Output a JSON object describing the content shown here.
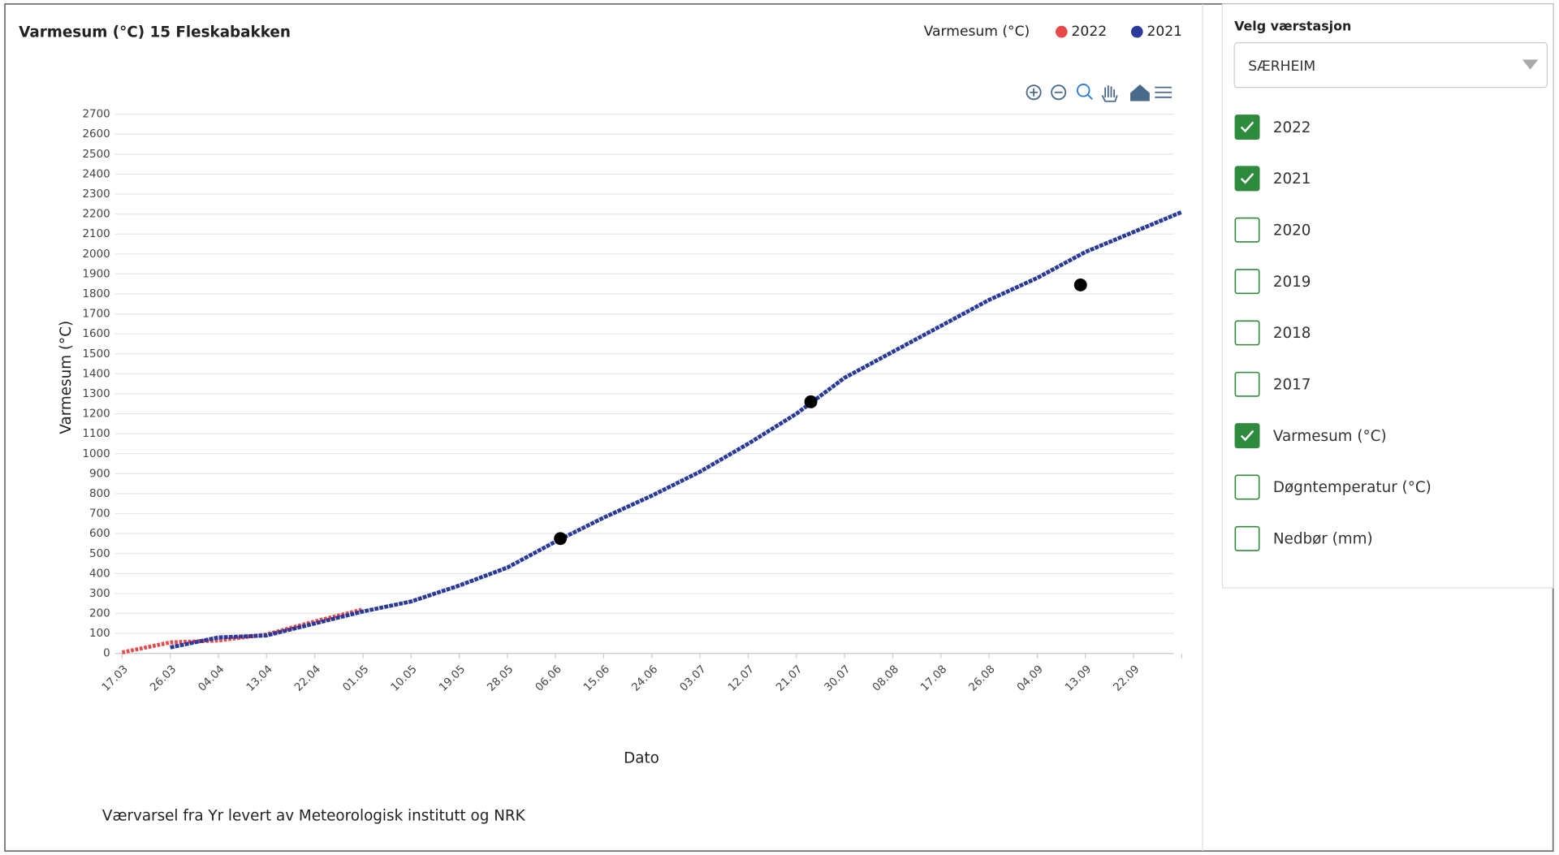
{
  "chart_data": {
    "type": "line",
    "title": "Varmesum (°C) 15 Fleskabakken",
    "legend_title": "Varmesum (°C)",
    "xlabel": "Dato",
    "ylabel": "Varmesum (°C)",
    "categories": [
      "17.03",
      "26.03",
      "04.04",
      "13.04",
      "22.04",
      "01.05",
      "10.05",
      "19.05",
      "28.05",
      "06.06",
      "15.06",
      "24.06",
      "03.07",
      "12.07",
      "21.07",
      "30.07",
      "08.08",
      "17.08",
      "26.08",
      "04.09",
      "13.09",
      "22.09",
      null
    ],
    "series": [
      {
        "name": "2022",
        "color": "#e84a4a",
        "values": [
          5,
          55,
          65,
          95,
          160,
          220,
          null,
          null,
          null,
          null,
          null,
          null,
          null,
          null,
          null,
          null,
          null,
          null,
          null,
          null,
          null,
          null,
          null
        ]
      },
      {
        "name": "2021",
        "color": "#2a3a9a",
        "values": [
          null,
          30,
          80,
          90,
          150,
          210,
          260,
          340,
          430,
          560,
          680,
          790,
          910,
          1050,
          1200,
          1380,
          1510,
          1640,
          1770,
          1880,
          2010,
          2110,
          2210
        ]
      }
    ],
    "markers": {
      "positions": [
        9.1,
        14.3,
        19.9
      ],
      "values": [
        575,
        1260,
        1845
      ],
      "color": "#000000"
    },
    "ylim": [
      0,
      2700
    ],
    "yticks": [
      0,
      100,
      200,
      300,
      400,
      500,
      600,
      700,
      800,
      900,
      1000,
      1100,
      1200,
      1300,
      1400,
      1500,
      1600,
      1700,
      1800,
      1900,
      2000,
      2100,
      2200,
      2300,
      2400,
      2500,
      2600,
      2700
    ],
    "grid": true
  },
  "footer": "Værvarsel fra Yr levert av Meteorologisk institutt og NRK",
  "panel": {
    "label": "Velg værstasjon",
    "station": "SÆRHEIM",
    "options": [
      {
        "label": "2022",
        "checked": true
      },
      {
        "label": "2021",
        "checked": true
      },
      {
        "label": "2020",
        "checked": false
      },
      {
        "label": "2019",
        "checked": false
      },
      {
        "label": "2018",
        "checked": false
      },
      {
        "label": "2017",
        "checked": false
      },
      {
        "label": "Varmesum (°C)",
        "checked": true
      },
      {
        "label": "Døgntemperatur (°C)",
        "checked": false
      },
      {
        "label": "Nedbør (mm)",
        "checked": false
      }
    ]
  }
}
